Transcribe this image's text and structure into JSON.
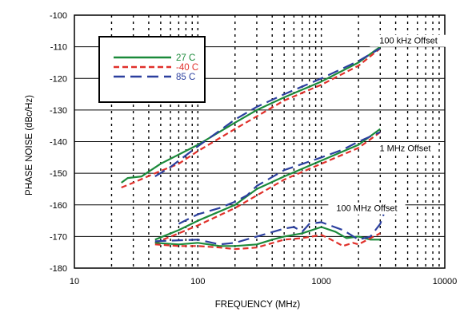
{
  "chart_data": {
    "type": "line",
    "xlabel": "FREQUENCY (MHz)",
    "ylabel": "PHASE NOISE (dBc/Hz)",
    "x_scale": "log",
    "xlim": [
      10,
      10000
    ],
    "ylim": [
      -180,
      -100
    ],
    "x_ticks": [
      10,
      100,
      1000,
      10000
    ],
    "x_tick_labels": [
      "10",
      "100",
      "1000",
      "10000"
    ],
    "y_ticks": [
      -180,
      -170,
      -160,
      -150,
      -140,
      -130,
      -120,
      -110,
      -100
    ],
    "y_tick_labels": [
      "-180",
      "-170",
      "-160",
      "-150",
      "-140",
      "-130",
      "-120",
      "-110",
      "-100"
    ],
    "grid": true,
    "legend_position": "top-left",
    "legend": [
      {
        "label": "27 C",
        "color": "#1b8a3a",
        "dash": "solid"
      },
      {
        "label": "-40 C",
        "color": "#e0302a",
        "dash": "short-dash"
      },
      {
        "label": "85 C",
        "color": "#2b3f9e",
        "dash": "long-dash"
      }
    ],
    "annotations": [
      "100 kHz Offset",
      "1 MHz Offset",
      "100 MHz Offset"
    ],
    "series": [
      {
        "name": "27 C",
        "group": "100 kHz Offset",
        "color": "#1b8a3a",
        "points": [
          [
            24,
            -153
          ],
          [
            27,
            -151.5
          ],
          [
            35,
            -151
          ],
          [
            50,
            -147
          ],
          [
            100,
            -141
          ],
          [
            200,
            -134
          ],
          [
            300,
            -130
          ],
          [
            500,
            -126
          ],
          [
            1000,
            -121
          ],
          [
            2000,
            -115
          ],
          [
            3000,
            -110
          ]
        ]
      },
      {
        "name": "-40 C",
        "group": "100 kHz Offset",
        "color": "#e0302a",
        "points": [
          [
            24,
            -154.5
          ],
          [
            30,
            -153
          ],
          [
            45,
            -150
          ],
          [
            70,
            -147
          ],
          [
            100,
            -143
          ],
          [
            200,
            -136
          ],
          [
            300,
            -132
          ],
          [
            500,
            -127
          ],
          [
            1000,
            -122
          ],
          [
            2000,
            -116
          ],
          [
            3000,
            -110.5
          ]
        ]
      },
      {
        "name": "85 C",
        "group": "100 kHz Offset",
        "color": "#2b3f9e",
        "points": [
          [
            45,
            -151
          ],
          [
            60,
            -148
          ],
          [
            100,
            -141.5
          ],
          [
            200,
            -133
          ],
          [
            300,
            -129
          ],
          [
            500,
            -125
          ],
          [
            1000,
            -120
          ],
          [
            2000,
            -114.5
          ],
          [
            3000,
            -110.5
          ]
        ]
      },
      {
        "name": "27 C",
        "group": "1 MHz Offset",
        "color": "#1b8a3a",
        "points": [
          [
            45,
            -171
          ],
          [
            70,
            -168
          ],
          [
            100,
            -165
          ],
          [
            200,
            -160
          ],
          [
            300,
            -155
          ],
          [
            500,
            -151
          ],
          [
            1000,
            -146
          ],
          [
            2000,
            -141
          ],
          [
            3000,
            -136
          ]
        ]
      },
      {
        "name": "-40 C",
        "group": "1 MHz Offset",
        "color": "#e0302a",
        "points": [
          [
            45,
            -172
          ],
          [
            70,
            -169
          ],
          [
            100,
            -166.5
          ],
          [
            200,
            -161
          ],
          [
            300,
            -157
          ],
          [
            500,
            -152
          ],
          [
            1000,
            -147
          ],
          [
            2000,
            -142
          ],
          [
            3000,
            -137
          ]
        ]
      },
      {
        "name": "85 C",
        "group": "1 MHz Offset",
        "color": "#2b3f9e",
        "points": [
          [
            70,
            -166
          ],
          [
            100,
            -163
          ],
          [
            150,
            -161
          ],
          [
            200,
            -159
          ],
          [
            250,
            -157
          ],
          [
            300,
            -154
          ],
          [
            500,
            -149
          ],
          [
            1000,
            -145
          ],
          [
            1500,
            -142.5
          ],
          [
            2000,
            -140
          ],
          [
            3000,
            -137
          ]
        ]
      },
      {
        "name": "27 C",
        "group": "100 MHz Offset",
        "color": "#1b8a3a",
        "points": [
          [
            45,
            -172
          ],
          [
            70,
            -172.5
          ],
          [
            100,
            -172
          ],
          [
            150,
            -173
          ],
          [
            200,
            -173
          ],
          [
            300,
            -172.5
          ],
          [
            400,
            -171
          ],
          [
            500,
            -170
          ],
          [
            700,
            -169
          ],
          [
            1000,
            -167
          ],
          [
            1300,
            -168.5
          ],
          [
            1600,
            -170.5
          ],
          [
            2000,
            -170
          ],
          [
            2500,
            -171
          ],
          [
            3000,
            -171
          ]
        ]
      },
      {
        "name": "-40 C",
        "group": "100 MHz Offset",
        "color": "#e0302a",
        "points": [
          [
            45,
            -172.5
          ],
          [
            70,
            -173
          ],
          [
            100,
            -173
          ],
          [
            150,
            -173.5
          ],
          [
            200,
            -174
          ],
          [
            300,
            -173.5
          ],
          [
            500,
            -171
          ],
          [
            700,
            -170.5
          ],
          [
            1000,
            -169.5
          ],
          [
            1200,
            -171
          ],
          [
            1500,
            -173
          ],
          [
            1800,
            -172
          ],
          [
            2000,
            -172.5
          ],
          [
            2500,
            -170.5
          ],
          [
            3000,
            -169
          ]
        ]
      },
      {
        "name": "85 C",
        "group": "100 MHz Offset",
        "color": "#2b3f9e",
        "points": [
          [
            45,
            -171.5
          ],
          [
            100,
            -171
          ],
          [
            150,
            -172.5
          ],
          [
            200,
            -172
          ],
          [
            300,
            -170
          ],
          [
            500,
            -167.5
          ],
          [
            600,
            -167
          ],
          [
            700,
            -168.5
          ],
          [
            800,
            -166
          ],
          [
            1000,
            -165.5
          ],
          [
            1500,
            -168
          ],
          [
            2000,
            -171
          ],
          [
            2500,
            -170
          ],
          [
            3000,
            -166
          ],
          [
            3200,
            -163
          ]
        ]
      }
    ]
  }
}
